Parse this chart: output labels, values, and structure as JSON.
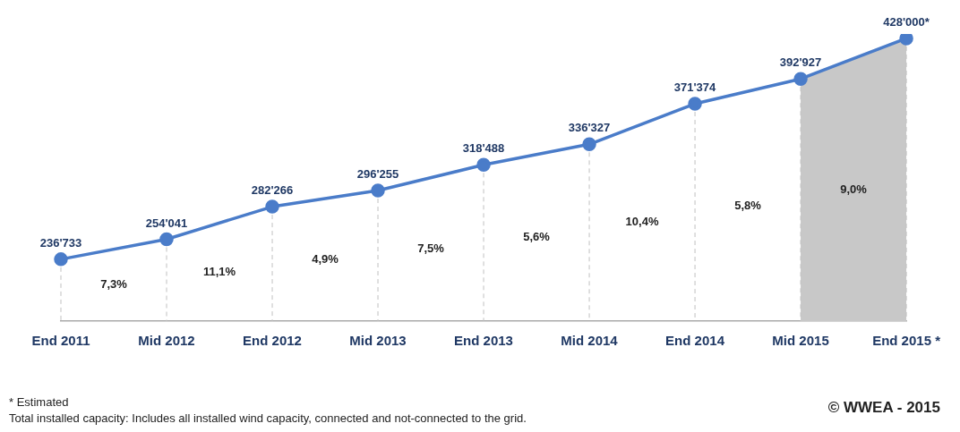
{
  "chart_data": {
    "type": "line",
    "categories": [
      "End 2011",
      "Mid 2012",
      "End 2012",
      "Mid 2013",
      "End 2013",
      "Mid 2014",
      "End 2014",
      "Mid 2015",
      "End 2015 *"
    ],
    "series": [
      {
        "color": "#4a7cc9",
        "values": [
          236733,
          254041,
          282266,
          296255,
          318488,
          336327,
          371374,
          392927,
          428000
        ],
        "value_labels": [
          "236'733",
          "254'041",
          "282'266",
          "296'255",
          "318'488",
          "336'327",
          "371'374",
          "392'927",
          "428'000*"
        ]
      }
    ],
    "bands": [
      {
        "axis": "x",
        "from": "Mid 2015",
        "to": "End 2015 *",
        "color": "#c8c8c8"
      }
    ],
    "annotations": [
      "7,3%",
      "11,1%",
      "4,9%",
      "7,5%",
      "5,6%",
      "10,4%",
      "5,8%",
      "9,0%",
      "* Estimated",
      "Total installed capacity: Includes all installed wind capacity, connected and not-connected to the grid.",
      "© WWEA - 2015"
    ],
    "grid": "x",
    "legend": false,
    "marker": "circle",
    "line_style": "solid"
  }
}
